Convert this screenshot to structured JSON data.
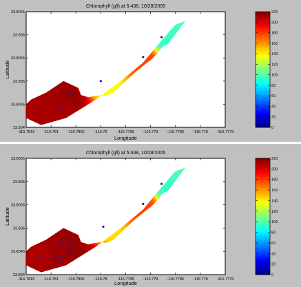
{
  "chart_data": [
    {
      "type": "heatmap",
      "title": "Chlorophyll (g/l) at 5:438, 10/28/2005",
      "xlabel": "Longitude",
      "ylabel": "Latitude",
      "xlim": [
        -116.7815,
        -116.7775
      ],
      "ylim": [
        33.804,
        33.8065
      ],
      "x_ticks": [
        "-116.7815",
        "-116.781",
        "-116.7805",
        "-116.78",
        "-116.7795",
        "-116.779",
        "-116.7785",
        "-116.778",
        "-116.7775"
      ],
      "y_ticks": [
        "33.804",
        "33.8045",
        "33.805",
        "33.8055",
        "33.806",
        "33.8065"
      ],
      "colorbar": {
        "range": [
          0,
          220
        ],
        "ticks": [
          "0",
          "20",
          "40",
          "60",
          "80",
          "100",
          "120",
          "140",
          "160",
          "180",
          "200",
          "220"
        ]
      },
      "outline": [
        [
          -116.7812,
          33.80405
        ],
        [
          -116.7807,
          33.8042
        ],
        [
          -116.7801,
          33.8046
        ],
        [
          -116.7796,
          33.805
        ],
        [
          -116.77915,
          33.8054
        ],
        [
          -116.7788,
          33.80585
        ],
        [
          -116.7786,
          33.8061
        ],
        [
          -116.7785,
          33.80622
        ],
        [
          -116.7783,
          33.8063
        ],
        [
          -116.77865,
          33.8058
        ],
        [
          -116.77875,
          33.80575
        ],
        [
          -116.77895,
          33.8055
        ],
        [
          -116.7793,
          33.8052
        ],
        [
          -116.77965,
          33.80485
        ],
        [
          -116.77975,
          33.80475
        ],
        [
          -116.7799,
          33.80468
        ],
        [
          -116.78,
          33.8047
        ],
        [
          -116.78025,
          33.80465
        ],
        [
          -116.7804,
          33.8047
        ],
        [
          -116.78045,
          33.80485
        ],
        [
          -116.78075,
          33.805
        ],
        [
          -116.7811,
          33.80475
        ],
        [
          -116.7814,
          33.8046
        ],
        [
          -116.7815,
          33.8045
        ],
        [
          -116.7815,
          33.8042
        ]
      ],
      "samples": [
        {
          "lon": -116.77878,
          "lat": 33.80595,
          "value": 95
        },
        {
          "lon": -116.77915,
          "lat": 33.80552,
          "value": 178
        },
        {
          "lon": -116.78,
          "lat": 33.805,
          "value": 135
        },
        {
          "lon": -116.7806,
          "lat": 33.8047,
          "value": 215
        },
        {
          "lon": -116.7808,
          "lat": 33.8044,
          "value": 212
        }
      ]
    },
    {
      "type": "heatmap",
      "title": "Chlorophyll (g/l) at 5:438, 10/28/2005",
      "xlabel": "Longitude",
      "ylabel": "Latitude",
      "xlim": [
        -116.7815,
        -116.7775
      ],
      "ylim": [
        33.804,
        33.8065
      ],
      "x_ticks": [
        "-116.7815",
        "-116.781",
        "-116.7805",
        "-116.78",
        "-116.7795",
        "-116.779",
        "-116.7785",
        "-116.778",
        "-116.7775"
      ],
      "y_ticks": [
        "33.804",
        "33.8045",
        "33.805",
        "33.8055",
        "33.806",
        "33.8065"
      ],
      "colorbar": {
        "range": [
          0,
          220
        ],
        "ticks": [
          "0",
          "20",
          "40",
          "60",
          "80",
          "100",
          "120",
          "140",
          "160",
          "180",
          "200",
          "220"
        ]
      },
      "outline": [
        [
          -116.7812,
          33.80405
        ],
        [
          -116.7807,
          33.8042
        ],
        [
          -116.7801,
          33.8046
        ],
        [
          -116.7796,
          33.805
        ],
        [
          -116.77915,
          33.8054
        ],
        [
          -116.7788,
          33.80585
        ],
        [
          -116.7786,
          33.8061
        ],
        [
          -116.7785,
          33.80622
        ],
        [
          -116.7783,
          33.8063
        ],
        [
          -116.77865,
          33.8058
        ],
        [
          -116.77875,
          33.80575
        ],
        [
          -116.77895,
          33.8055
        ],
        [
          -116.7793,
          33.8052
        ],
        [
          -116.77965,
          33.80485
        ],
        [
          -116.77975,
          33.80475
        ],
        [
          -116.7799,
          33.80468
        ],
        [
          -116.78,
          33.8047
        ],
        [
          -116.78025,
          33.80465
        ],
        [
          -116.7804,
          33.8047
        ],
        [
          -116.78045,
          33.80485
        ],
        [
          -116.78075,
          33.805
        ],
        [
          -116.7811,
          33.80475
        ],
        [
          -116.7814,
          33.8046
        ],
        [
          -116.7815,
          33.8045
        ],
        [
          -116.7815,
          33.8042
        ]
      ],
      "samples": [
        {
          "lon": -116.77878,
          "lat": 33.80595,
          "value": 95
        },
        {
          "lon": -116.77915,
          "lat": 33.80552,
          "value": 178
        },
        {
          "lon": -116.77995,
          "lat": 33.80503,
          "value": 140
        },
        {
          "lon": -116.7806,
          "lat": 33.80475,
          "value": 215
        },
        {
          "lon": -116.7808,
          "lat": 33.80472,
          "value": 214
        },
        {
          "lon": -116.78075,
          "lat": 33.80465,
          "value": 213
        },
        {
          "lon": -116.78065,
          "lat": 33.80448,
          "value": 214
        },
        {
          "lon": -116.7808,
          "lat": 33.8044,
          "value": 212
        },
        {
          "lon": -116.7809,
          "lat": 33.80435,
          "value": 214
        },
        {
          "lon": -116.7808,
          "lat": 33.80425,
          "value": 213
        },
        {
          "lon": -116.78055,
          "lat": 33.8045,
          "value": 216
        },
        {
          "lon": -116.7812,
          "lat": 33.8044,
          "value": 210
        }
      ]
    }
  ]
}
